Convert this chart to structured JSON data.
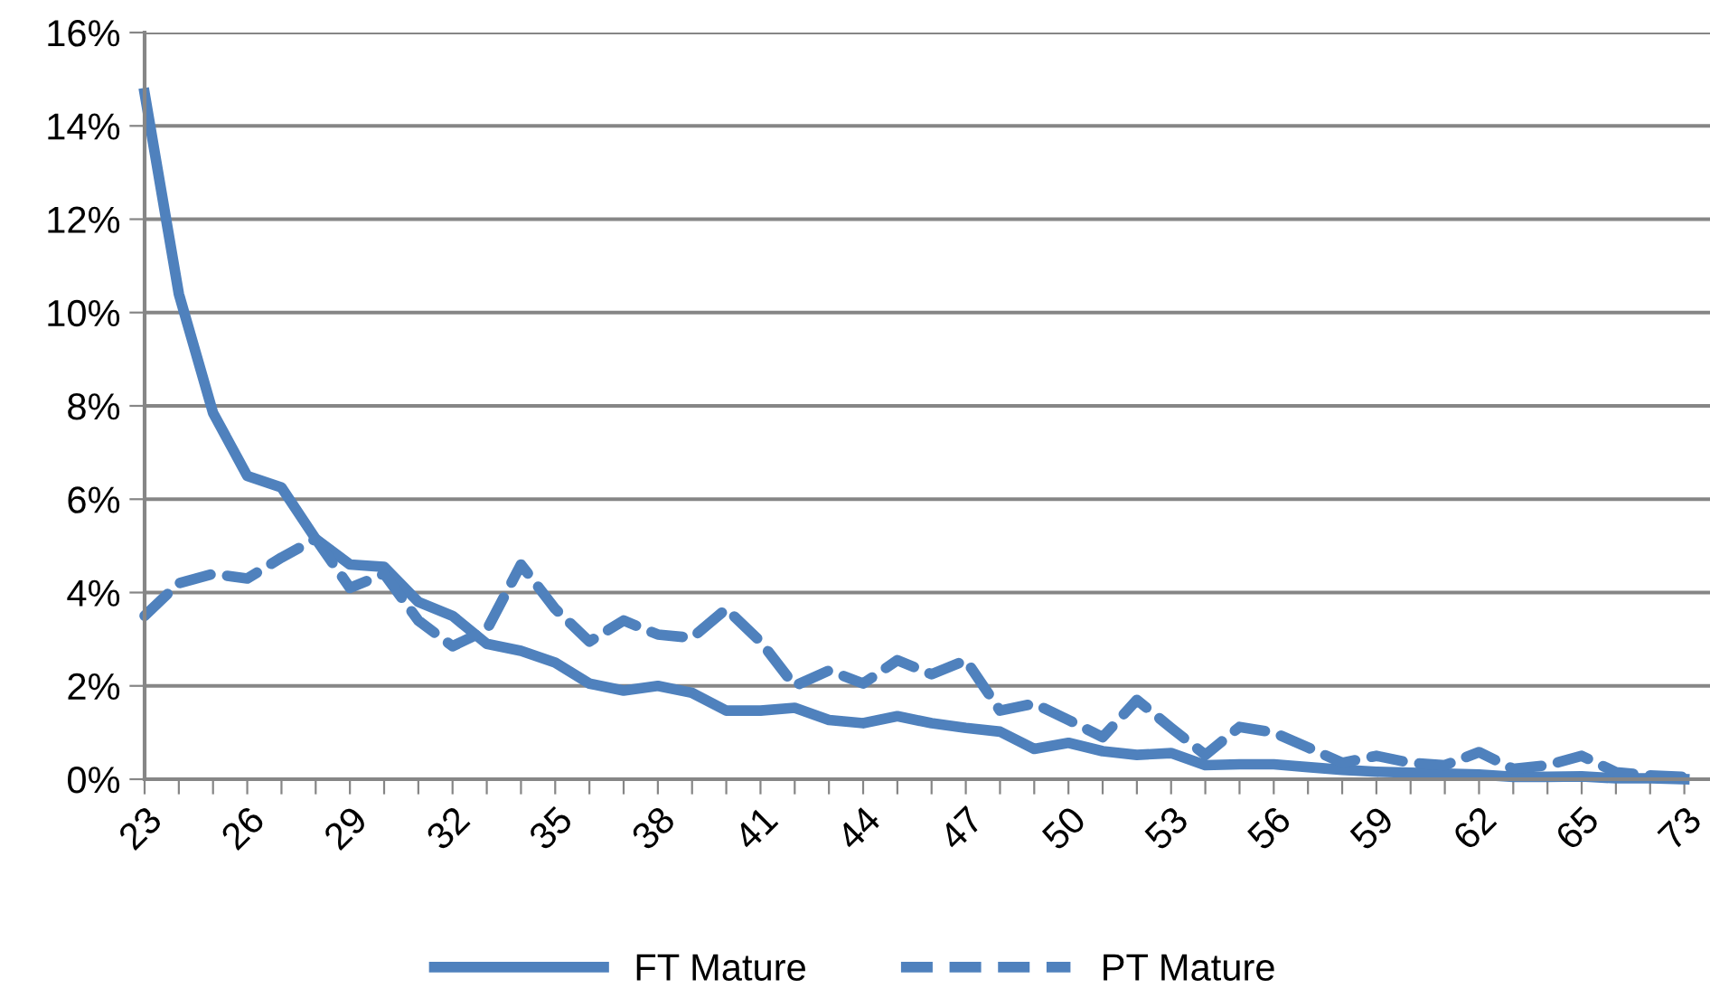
{
  "chart_data": {
    "type": "line",
    "categories": [
      "23",
      null,
      null,
      "26",
      null,
      null,
      "29",
      null,
      null,
      "32",
      null,
      null,
      "35",
      null,
      null,
      "38",
      null,
      null,
      "41",
      null,
      null,
      "44",
      null,
      null,
      "47",
      null,
      null,
      "50",
      null,
      null,
      "53",
      null,
      null,
      "56",
      null,
      null,
      "59",
      null,
      null,
      "62",
      null,
      null,
      "65",
      null,
      null,
      "73"
    ],
    "series": [
      {
        "name": "FT Mature",
        "color": "#4f81bd",
        "line_style": "solid",
        "values": [
          14.7,
          10.4,
          7.85,
          6.5,
          6.25,
          5.15,
          4.6,
          4.55,
          3.8,
          3.5,
          2.9,
          2.75,
          2.5,
          2.05,
          1.9,
          2.0,
          1.85,
          1.47,
          1.47,
          1.53,
          1.27,
          1.2,
          1.35,
          1.2,
          1.1,
          1.02,
          0.65,
          0.78,
          0.6,
          0.52,
          0.56,
          0.3,
          0.32,
          0.32,
          0.26,
          0.2,
          0.16,
          0.14,
          0.12,
          0.1,
          0.05,
          0.05,
          0.06,
          0.02,
          0.02,
          0.0
        ]
      },
      {
        "name": "PT Mature",
        "color": "#4f81bd",
        "line_style": "dashed",
        "values": [
          3.5,
          4.2,
          4.4,
          4.3,
          4.75,
          5.15,
          4.1,
          4.4,
          3.4,
          2.85,
          3.2,
          4.6,
          3.65,
          2.95,
          3.4,
          3.1,
          3.03,
          3.65,
          2.95,
          2.0,
          2.33,
          2.05,
          2.55,
          2.25,
          2.55,
          1.47,
          1.62,
          1.27,
          0.9,
          1.7,
          1.1,
          0.52,
          1.12,
          1.0,
          0.68,
          0.35,
          0.5,
          0.35,
          0.3,
          0.58,
          0.22,
          0.3,
          0.5,
          0.15,
          0.08,
          0.05
        ]
      }
    ],
    "ylim": [
      0,
      16
    ],
    "yticks": [
      {
        "value": 0,
        "label": "0%"
      },
      {
        "value": 2,
        "label": "2%"
      },
      {
        "value": 4,
        "label": "4%"
      },
      {
        "value": 6,
        "label": "6%"
      },
      {
        "value": 8,
        "label": "8%"
      },
      {
        "value": 10,
        "label": "10%"
      },
      {
        "value": 12,
        "label": "12%"
      },
      {
        "value": 14,
        "label": "14%"
      },
      {
        "value": 16,
        "label": "16%"
      }
    ],
    "grid": "y",
    "legend": "bottom",
    "marker": "none"
  }
}
